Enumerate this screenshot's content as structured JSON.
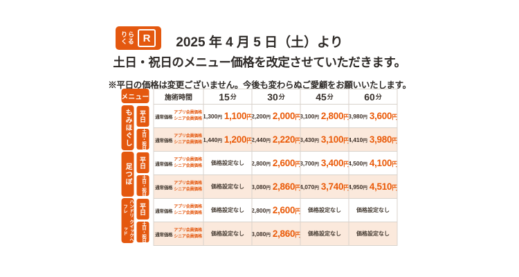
{
  "colors": {
    "accent": "#e4580f",
    "price_orange": "#ea5a08",
    "weekend_row_bg": "#fbe9dc",
    "text_dark": "#362f2a",
    "grid_border": "#d8d2cb"
  },
  "logo": {
    "line1": "りら",
    "line2": "くる",
    "mark": "R"
  },
  "header": {
    "title_line1": "2025 年 4 月 5 日（土）より",
    "title_line2": "土日・祝日のメニュー価格を改定させていただきます。",
    "note": "※平日の価格は変更ございません。今後も変わらぬご愛顧をお願いいたします。"
  },
  "table": {
    "menu_header": "メニュー",
    "time_header": "施術時間",
    "durations": [
      {
        "num": "15",
        "unit": "分"
      },
      {
        "num": "30",
        "unit": "分"
      },
      {
        "num": "45",
        "unit": "分"
      },
      {
        "num": "60",
        "unit": "分"
      }
    ],
    "regular_price_label": "通常価格",
    "member_price_label_1": "アプリ会員価格",
    "member_price_label_2": "シニア会員価格",
    "no_price_label": "価格設定なし",
    "yen": "円",
    "sections": [
      {
        "menu": "もみほぐし",
        "rows": [
          {
            "day": "平日",
            "cells": [
              {
                "regular": "1,300",
                "member": "1,100"
              },
              {
                "regular": "2,200",
                "member": "2,000"
              },
              {
                "regular": "3,100",
                "member": "2,800"
              },
              {
                "regular": "3,980",
                "member": "3,600"
              }
            ]
          },
          {
            "day": "土日・祝日",
            "cells": [
              {
                "regular": "1,440",
                "member": "1,200"
              },
              {
                "regular": "2,440",
                "member": "2,220"
              },
              {
                "regular": "3,430",
                "member": "3,100"
              },
              {
                "regular": "4,410",
                "member": "3,980"
              }
            ]
          }
        ]
      },
      {
        "menu": "足つぼ",
        "rows": [
          {
            "day": "平日",
            "cells": [
              null,
              {
                "regular": "2,800",
                "member": "2,600"
              },
              {
                "regular": "3,700",
                "member": "3,400"
              },
              {
                "regular": "4,500",
                "member": "4,100"
              }
            ]
          },
          {
            "day": "土日・祝日",
            "cells": [
              null,
              {
                "regular": "3,080",
                "member": "2,860"
              },
              {
                "regular": "4,070",
                "member": "3,740"
              },
              {
                "regular": "4,950",
                "member": "4,510"
              }
            ]
          }
        ]
      },
      {
        "menu": "ハンドリフレ",
        "menu2": "クイックヘッド",
        "rows": [
          {
            "day": "平日",
            "cells": [
              null,
              {
                "regular": "2,800",
                "member": "2,600"
              },
              null,
              null
            ]
          },
          {
            "day": "土日・祝日",
            "cells": [
              null,
              {
                "regular": "3,080",
                "member": "2,860"
              },
              null,
              null
            ]
          }
        ]
      }
    ]
  }
}
